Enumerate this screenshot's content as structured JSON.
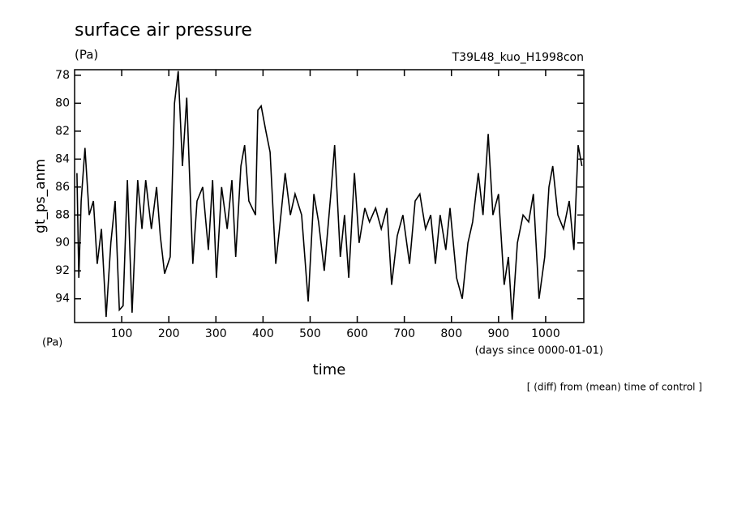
{
  "chart_data": {
    "type": "line",
    "title": "surface air pressure",
    "y_unit": "(Pa)",
    "subtitle": "T39L48_kuo_H1998con",
    "ylabel": "gt_ps_anm",
    "y_unit_bottom": "(Pa)",
    "xlabel": "time",
    "x_unit": "(days since 0000-01-01)",
    "annotation": "[ (diff) from (mean) time of control ]",
    "x": [
      5,
      9,
      14,
      22,
      31,
      40,
      48,
      57,
      67,
      77,
      86,
      95,
      103,
      112,
      122,
      134,
      143,
      151,
      163,
      174,
      182,
      191,
      203,
      212,
      220,
      229,
      238,
      251,
      260,
      272,
      284,
      293,
      301,
      312,
      324,
      334,
      342,
      353,
      361,
      370,
      384,
      389,
      396,
      406,
      415,
      427,
      435,
      447,
      458,
      468,
      482,
      496,
      508,
      518,
      530,
      544,
      552,
      564,
      573,
      582,
      594,
      604,
      616,
      626,
      639,
      651,
      663,
      673,
      685,
      697,
      711,
      723,
      733,
      745,
      756,
      766,
      776,
      788,
      797,
      811,
      823,
      835,
      845,
      857,
      867,
      878,
      888,
      900,
      912,
      921,
      929,
      940,
      952,
      964,
      974,
      986,
      998,
      1007,
      1015,
      1026,
      1038,
      1050,
      1060,
      1069,
      1077
    ],
    "series": [
      {
        "name": "gt_ps_anm",
        "color": "#000000",
        "values": [
          85,
          92.5,
          87,
          83.2,
          88,
          87,
          91.5,
          89,
          95.3,
          90,
          87,
          94.8,
          94.5,
          85.5,
          95,
          85.5,
          89,
          85.5,
          89,
          86,
          89.5,
          92.2,
          91,
          80,
          77.7,
          84.5,
          79.6,
          91.5,
          87,
          86,
          90.5,
          85.5,
          92.5,
          86,
          89,
          85.5,
          91,
          84.5,
          83,
          87,
          88,
          80.5,
          80.2,
          82,
          83.5,
          91.5,
          89,
          85,
          88,
          86.5,
          88,
          94.2,
          86.5,
          88.5,
          92,
          86.5,
          83,
          91,
          88,
          92.5,
          85,
          90,
          87.5,
          88.5,
          87.5,
          89,
          87.5,
          93,
          89.5,
          88,
          91.5,
          87,
          86.5,
          89,
          88,
          91.5,
          88,
          90.5,
          87.5,
          92.5,
          94,
          90,
          88.5,
          85,
          88,
          82.2,
          88,
          86.5,
          93,
          91,
          95.5,
          90,
          88,
          88.5,
          86.5,
          94,
          91,
          86,
          84.5,
          88,
          89,
          87,
          90.5,
          83,
          84.5
        ]
      }
    ],
    "xlim": [
      0,
      1081
    ],
    "xticks": [
      100,
      200,
      300,
      400,
      500,
      600,
      700,
      800,
      900,
      1000
    ],
    "ylim": [
      95.7,
      77.6
    ],
    "yticks": [
      78,
      80,
      82,
      84,
      86,
      88,
      90,
      92,
      94
    ]
  }
}
